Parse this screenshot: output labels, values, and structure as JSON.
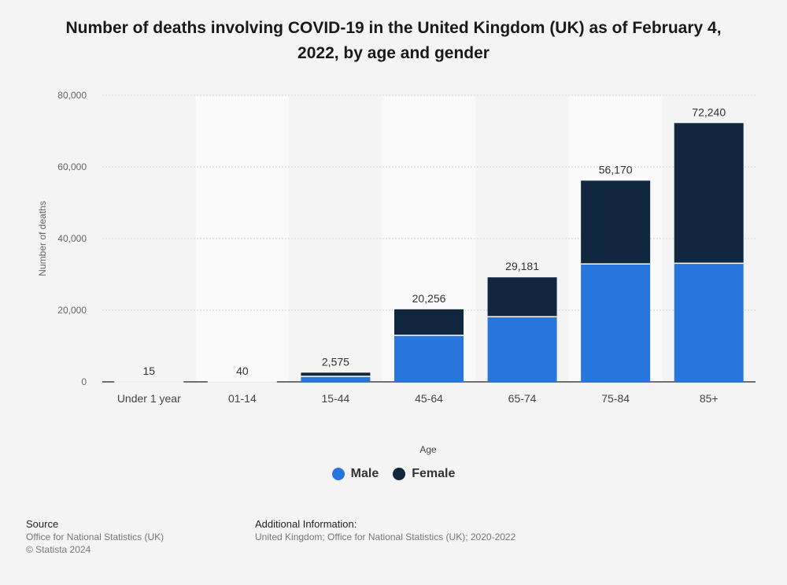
{
  "chart_data": {
    "type": "bar",
    "stacked": true,
    "title": "Number of deaths involving COVID-19 in the United Kingdom (UK) as of February 4, 2022, by age and gender",
    "xlabel": "Age",
    "ylabel": "Number of deaths",
    "ylim": [
      0,
      80000
    ],
    "yticks": [
      0,
      20000,
      40000,
      60000,
      80000
    ],
    "ytick_labels": [
      "0",
      "20,000",
      "40,000",
      "60,000",
      "80,000"
    ],
    "grid": true,
    "legend_position": "bottom-center",
    "categories": [
      "Under 1 year",
      "01-14",
      "15-44",
      "45-64",
      "65-74",
      "75-84",
      "85+"
    ],
    "series": [
      {
        "name": "Male",
        "color": "#2876dd",
        "values": [
          8,
          22,
          1550,
          13000,
          18200,
          32900,
          33100
        ]
      },
      {
        "name": "Female",
        "color": "#10273f",
        "values": [
          7,
          18,
          1025,
          7256,
          10981,
          23270,
          39140
        ]
      }
    ],
    "totals": [
      15,
      40,
      2575,
      20256,
      29181,
      56170,
      72240
    ],
    "total_labels": [
      "15",
      "40",
      "2,575",
      "20,256",
      "29,181",
      "56,170",
      "72,240"
    ]
  },
  "footer": {
    "source_heading": "Source",
    "source_line1": "Office for National Statistics (UK)",
    "source_line2": "© Statista 2024",
    "info_heading": "Additional Information:",
    "info_text": "United Kingdom; Office for National Statistics (UK); 2020-2022"
  }
}
